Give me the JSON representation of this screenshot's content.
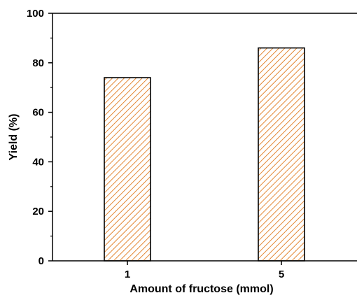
{
  "chart_data": {
    "type": "bar",
    "categories": [
      "1",
      "5"
    ],
    "values": [
      74,
      86
    ],
    "xlabel": "Amount of fructose (mmol)",
    "ylabel": "Yield (%)",
    "ylim": [
      0,
      100
    ],
    "yticks": [
      0,
      20,
      40,
      60,
      80,
      100
    ],
    "grid": false,
    "bar_fill_color": "#ffffff",
    "bar_hatch_color": "#E07B20",
    "bar_edge_color": "#000000",
    "bar_hatch": "diagonal"
  }
}
